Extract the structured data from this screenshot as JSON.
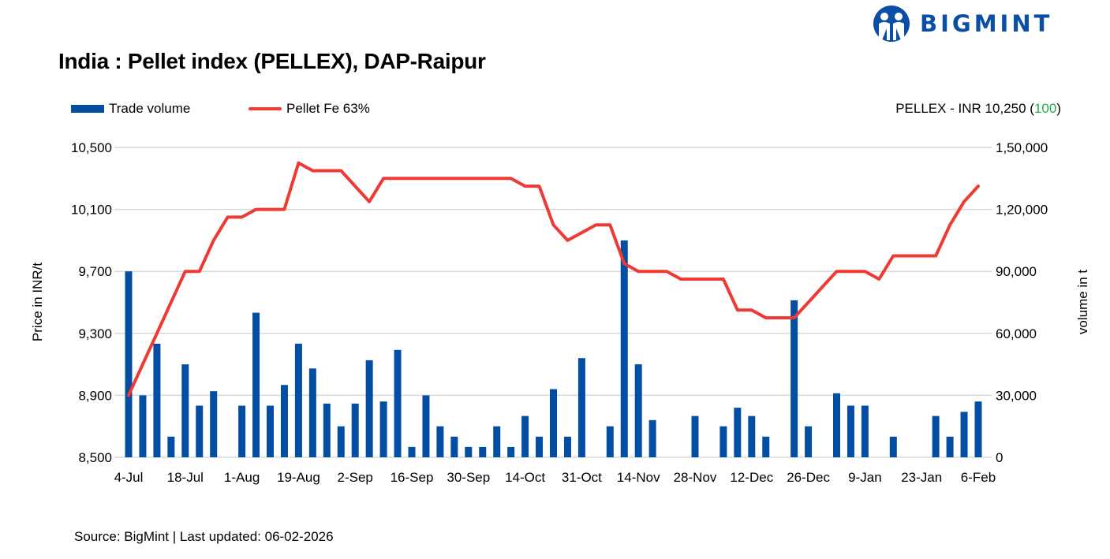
{
  "logo": {
    "text": "BIGMINT",
    "color": "#0a4ea6"
  },
  "title": "India : Pellet index (PELLEX), DAP-Raipur",
  "legend": {
    "bar_label": "Trade volume",
    "line_label": "Pellet Fe 63%"
  },
  "pellex": {
    "prefix": "PELLEX - INR 10,250 (",
    "change": "100",
    "suffix": ")",
    "change_color": "#1fae4b"
  },
  "source": "Source: BigMint | Last updated: 06-02-2026",
  "chart_data": {
    "type": "bar+line",
    "ylabel": "Price in INR/t",
    "y2label": "volume in t",
    "ylim": [
      8500,
      10500
    ],
    "y2lim": [
      0,
      150000
    ],
    "y_ticks": [
      "8,500",
      "8,900",
      "9,300",
      "9,700",
      "10,100",
      "10,500"
    ],
    "y2_ticks": [
      "0",
      "30,000",
      "60,000",
      "90,000",
      "1,20,000",
      "1,50,000"
    ],
    "x_tick_labels": [
      "4-Jul",
      "18-Jul",
      "1-Aug",
      "19-Aug",
      "2-Sep",
      "16-Sep",
      "30-Sep",
      "14-Oct",
      "31-Oct",
      "14-Nov",
      "28-Nov",
      "12-Dec",
      "26-Dec",
      "9-Jan",
      "23-Jan",
      "6-Feb"
    ],
    "grid": true,
    "legend_position": "top-left",
    "series": [
      {
        "name": "Trade volume",
        "type": "bar",
        "axis": "right",
        "color": "#034ea2",
        "values": [
          90000,
          30000,
          55000,
          10000,
          45000,
          25000,
          32000,
          0,
          25000,
          70000,
          25000,
          35000,
          55000,
          43000,
          26000,
          15000,
          26000,
          47000,
          27000,
          52000,
          5000,
          30000,
          15000,
          10000,
          5000,
          5000,
          15000,
          5000,
          20000,
          10000,
          33000,
          10000,
          48000,
          0,
          15000,
          105000,
          45000,
          18000,
          0,
          0,
          20000,
          0,
          15000,
          24000,
          20000,
          10000,
          0,
          76000,
          15000,
          0,
          31000,
          25000,
          25000,
          0,
          10000,
          0,
          0,
          20000,
          10000,
          22000,
          27000
        ]
      },
      {
        "name": "Pellet Fe 63%",
        "type": "line",
        "axis": "left",
        "color": "#ee3a32",
        "values": [
          8900,
          9100,
          9300,
          9500,
          9700,
          9700,
          9900,
          10050,
          10050,
          10100,
          10100,
          10100,
          10400,
          10350,
          10350,
          10350,
          10250,
          10150,
          10300,
          10300,
          10300,
          10300,
          10300,
          10300,
          10300,
          10300,
          10300,
          10300,
          10250,
          10250,
          10000,
          9900,
          9950,
          10000,
          10000,
          9750,
          9700,
          9700,
          9700,
          9650,
          9650,
          9650,
          9650,
          9450,
          9450,
          9400,
          9400,
          9400,
          9500,
          9600,
          9700,
          9700,
          9700,
          9650,
          9800,
          9800,
          9800,
          9800,
          10000,
          10150,
          10250
        ]
      }
    ]
  }
}
